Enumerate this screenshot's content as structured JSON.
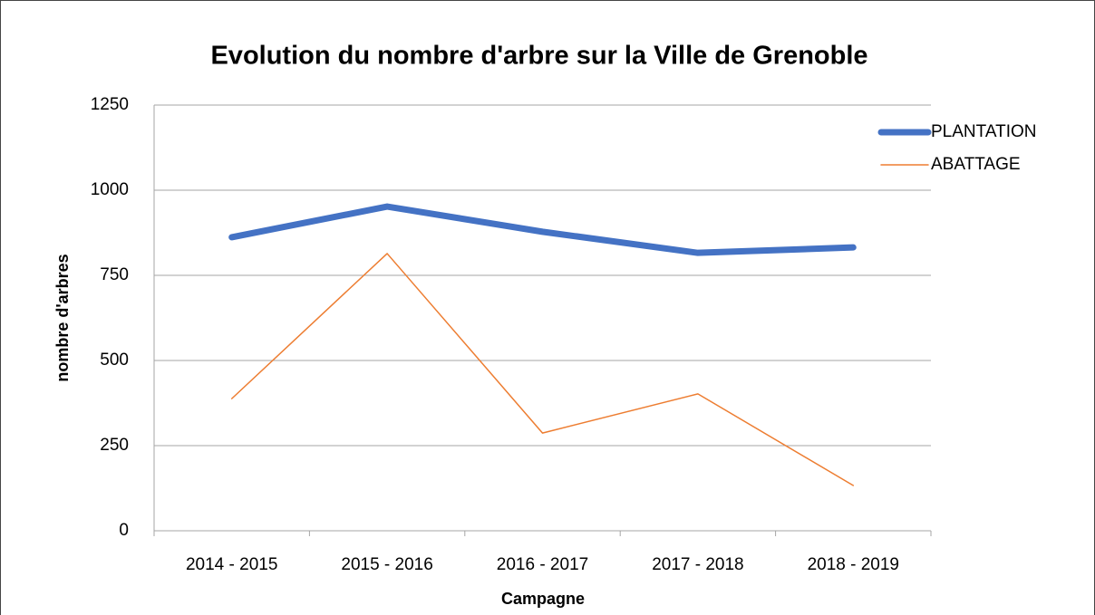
{
  "chart_data": {
    "type": "line",
    "title": "Evolution du nombre d'arbre sur la Ville de Grenoble",
    "xlabel": "Campagne",
    "ylabel": "nombre d'arbres",
    "categories": [
      "2014 - 2015",
      "2015 - 2016",
      "2016 - 2017",
      "2017 - 2018",
      "2018 - 2019"
    ],
    "series": [
      {
        "name": "PLANTATION",
        "color": "#4472c4",
        "values": [
          862,
          952,
          878,
          816,
          832
        ]
      },
      {
        "name": "ABATTAGE",
        "color": "#ed7d31",
        "values": [
          388,
          814,
          287,
          402,
          133
        ]
      }
    ],
    "ylim": [
      0,
      1250
    ],
    "yticks": [
      0,
      250,
      500,
      750,
      1000,
      1250
    ],
    "grid": true,
    "legend": "right"
  }
}
